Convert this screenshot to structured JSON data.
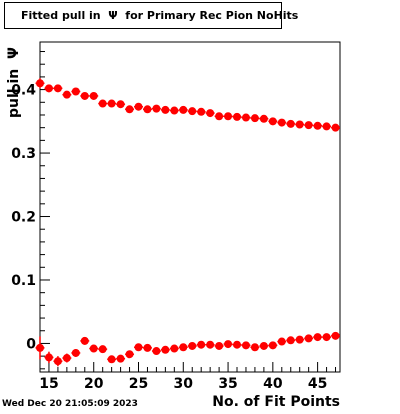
{
  "chart_data": {
    "type": "scatter",
    "title": "Fitted pull in  Ψ  for Primary Rec Pion NoHits",
    "xlabel": "No. of Fit Points",
    "ylabel": "pull in  Ψ",
    "xlim": [
      14,
      47.5
    ],
    "ylim": [
      -0.045,
      0.475
    ],
    "x_ticks": [
      15,
      20,
      25,
      30,
      35,
      40,
      45
    ],
    "y_ticks": [
      0,
      0.1,
      0.2,
      0.3,
      0.4
    ],
    "y_tick_labels": [
      "0",
      "0.1",
      "0.2",
      "0.3",
      "0.4"
    ],
    "marker_color": "#ff0000",
    "grid": false,
    "series": [
      {
        "x": [
          14,
          15,
          16,
          17,
          18,
          19,
          20,
          21,
          22,
          23,
          24,
          25,
          26,
          27,
          28,
          29,
          30,
          31,
          32,
          33,
          34,
          35,
          36,
          37,
          38,
          39,
          40,
          41,
          42,
          43,
          44,
          45,
          46,
          47
        ],
        "values": [
          0.41,
          0.402,
          0.402,
          0.392,
          0.397,
          0.39,
          0.39,
          0.378,
          0.378,
          0.377,
          0.369,
          0.373,
          0.369,
          0.37,
          0.368,
          0.367,
          0.368,
          0.366,
          0.365,
          0.363,
          0.358,
          0.358,
          0.357,
          0.356,
          0.355,
          0.354,
          0.35,
          0.348,
          0.346,
          0.345,
          0.344,
          0.343,
          0.342,
          0.34
        ],
        "yerr": [
          0.008,
          0.006,
          0.005,
          0.005,
          0.004,
          0.004,
          0.004,
          0.003,
          0.003,
          0.003,
          0.003,
          0.003,
          0.003,
          0.003,
          0.003,
          0.002,
          0.002,
          0.002,
          0.002,
          0.002,
          0.002,
          0.002,
          0.002,
          0.002,
          0.002,
          0.002,
          0.002,
          0.002,
          0.002,
          0.002,
          0.002,
          0.002,
          0.002,
          0.003
        ]
      },
      {
        "x": [
          14,
          15,
          16,
          17,
          18,
          19,
          20,
          21,
          22,
          23,
          24,
          25,
          26,
          27,
          28,
          29,
          30,
          31,
          32,
          33,
          34,
          35,
          36,
          37,
          38,
          39,
          40,
          41,
          42,
          43,
          44,
          45,
          46,
          47
        ],
        "values": [
          -0.007,
          -0.022,
          -0.028,
          -0.023,
          -0.015,
          0.004,
          -0.008,
          -0.009,
          -0.025,
          -0.024,
          -0.017,
          -0.006,
          -0.007,
          -0.012,
          -0.01,
          -0.008,
          -0.006,
          -0.004,
          -0.002,
          -0.002,
          -0.004,
          -0.001,
          -0.002,
          -0.003,
          -0.006,
          -0.004,
          -0.003,
          0.003,
          0.005,
          0.006,
          0.008,
          0.01,
          0.01,
          0.012
        ],
        "yerr": [
          0.018,
          0.009,
          0.008,
          0.007,
          0.006,
          0.006,
          0.005,
          0.005,
          0.004,
          0.004,
          0.004,
          0.004,
          0.003,
          0.003,
          0.003,
          0.003,
          0.003,
          0.003,
          0.003,
          0.003,
          0.003,
          0.003,
          0.003,
          0.003,
          0.003,
          0.003,
          0.003,
          0.003,
          0.003,
          0.003,
          0.003,
          0.003,
          0.003,
          0.004
        ]
      }
    ]
  },
  "footer": {
    "date": "Wed Dec 20 21:05:09 2023"
  }
}
